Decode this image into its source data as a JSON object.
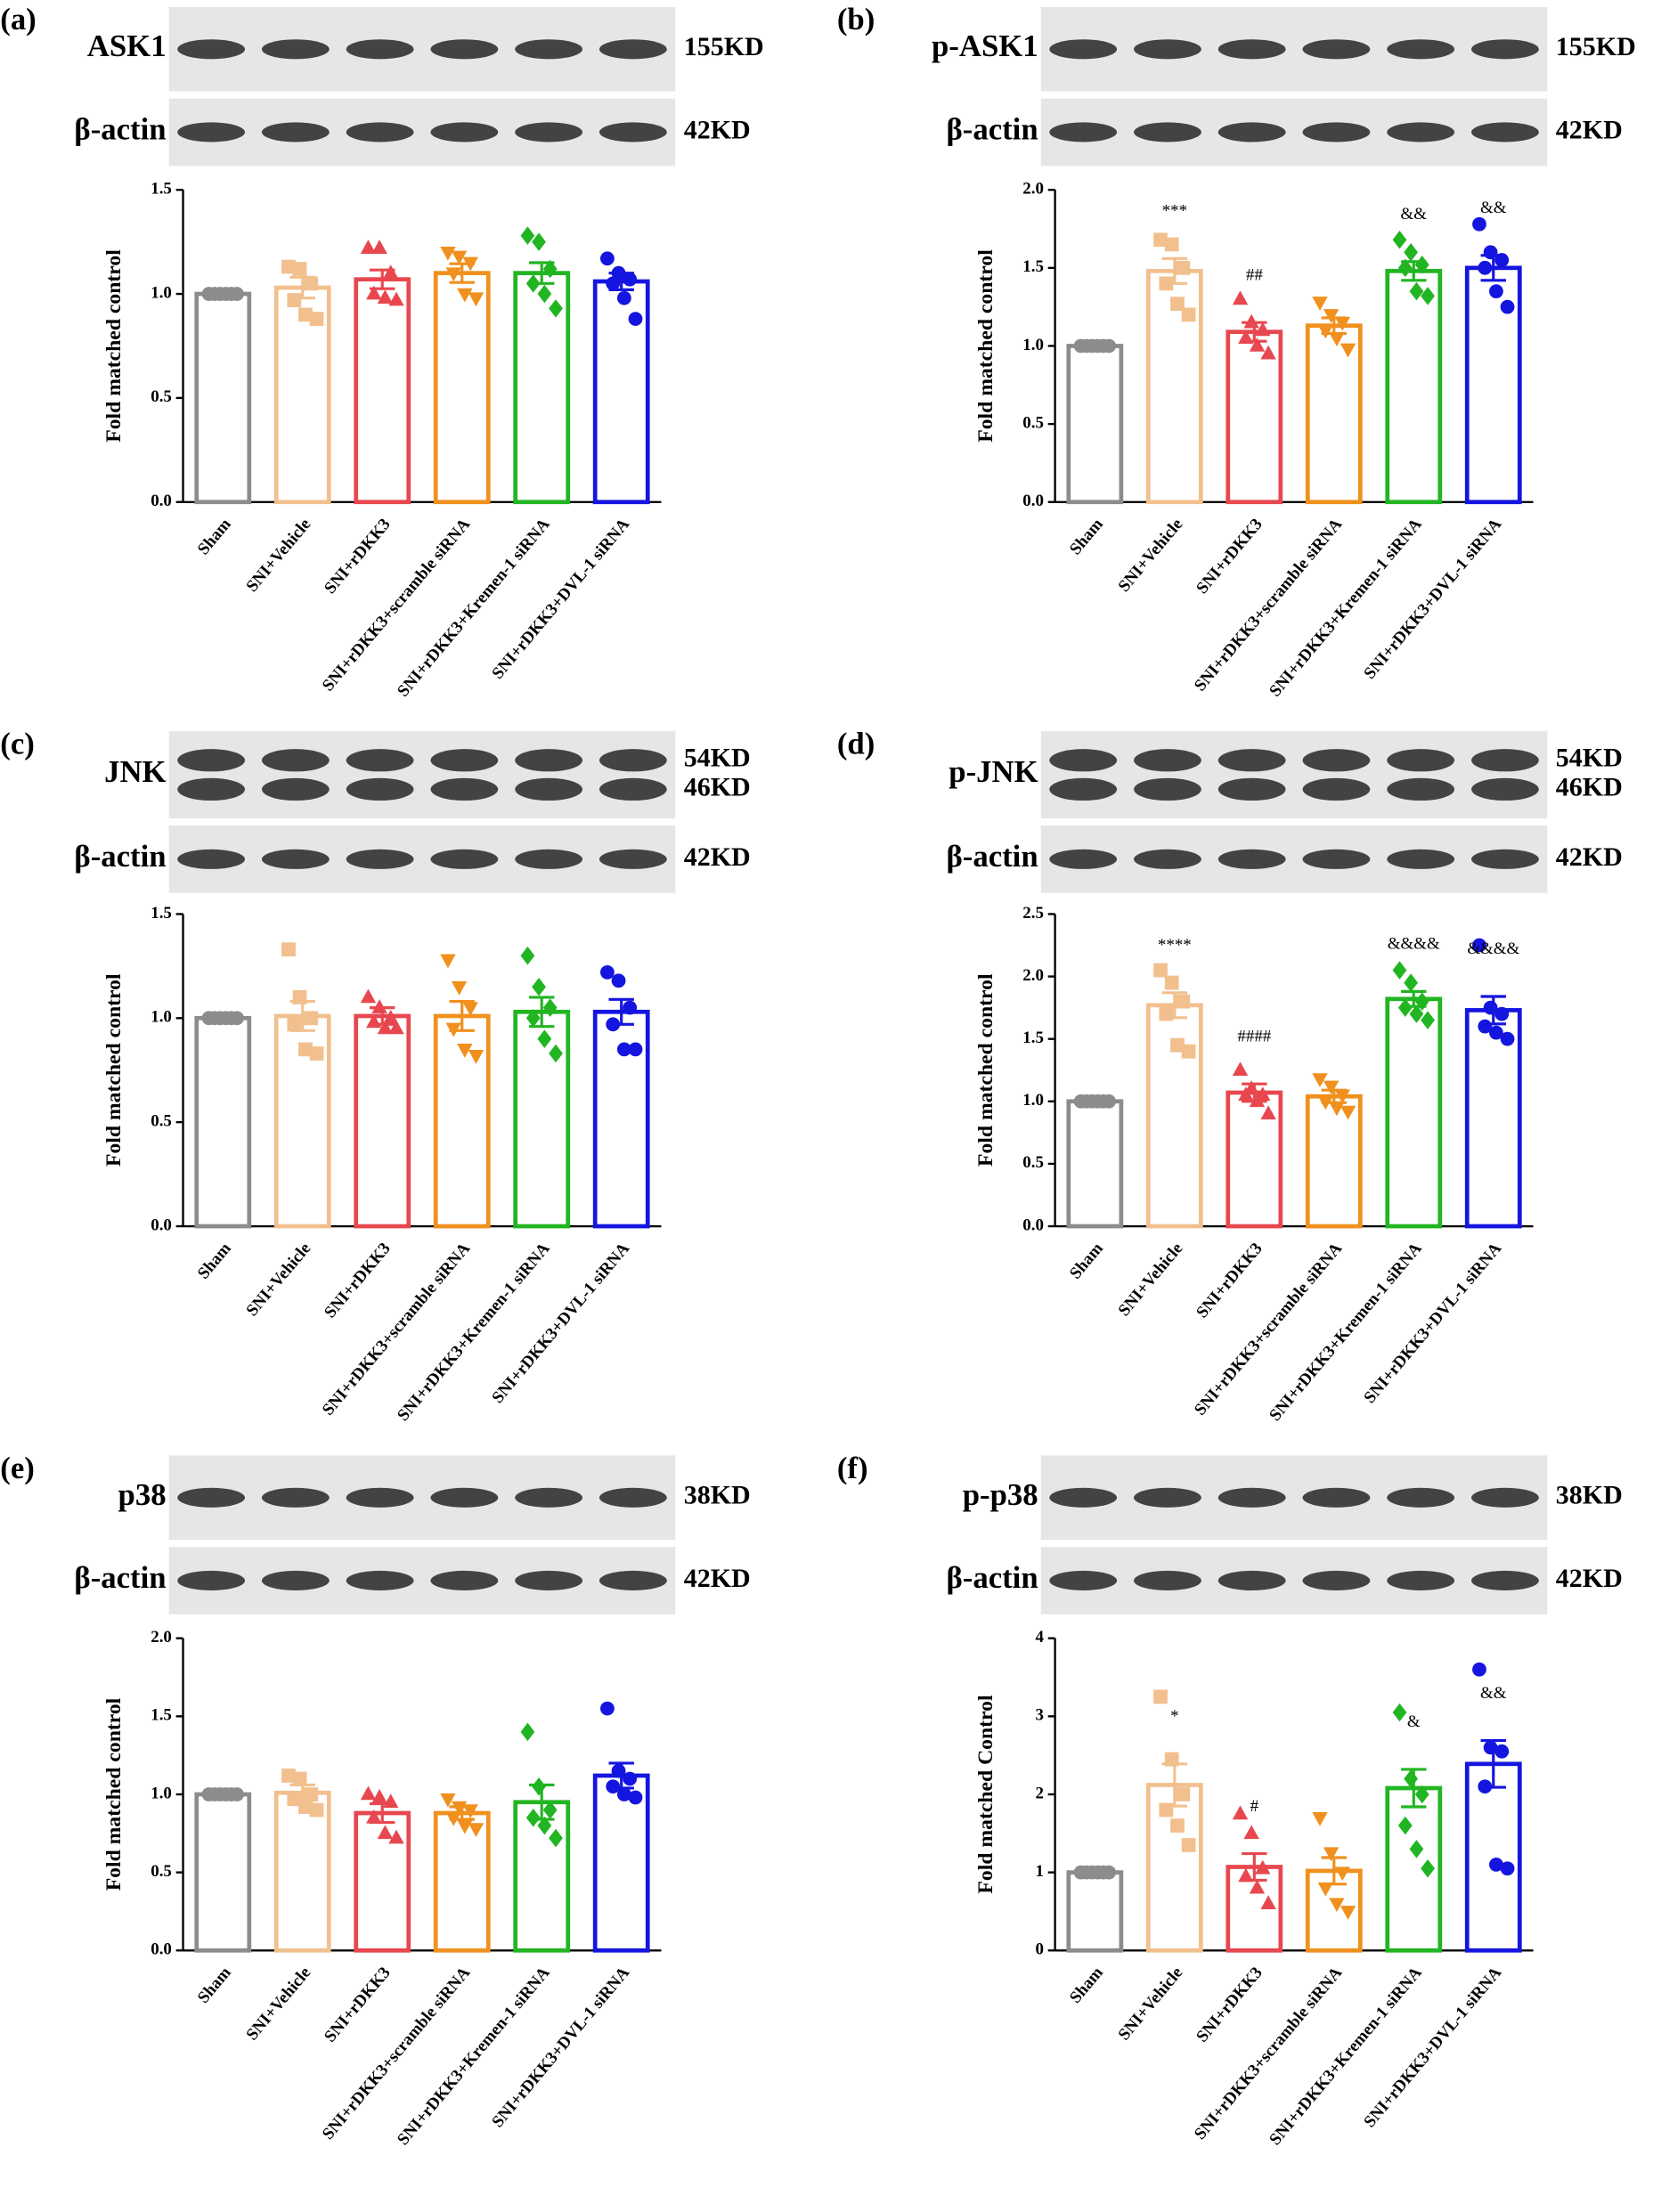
{
  "chart_data": [
    {
      "type": "bar",
      "panel": "(a)",
      "blots": [
        {
          "label": "ASK1",
          "sizes": [
            "155KD"
          ]
        },
        {
          "label": "β-actin",
          "sizes": [
            "42KD"
          ]
        }
      ],
      "y_label": "Fold matched control",
      "categories": [
        "Sham",
        "SNI+Vehicle",
        "SNI+rDKK3",
        "SNI+rDKK3+scramble siRNA",
        "SNI+rDKK3+Kremen-1 siRNA",
        "SNI+rDKK3+DVL-1 siRNA"
      ],
      "colors": [
        "#8c8c8c",
        "#f2c08e",
        "#e8474f",
        "#f0901e",
        "#22b522",
        "#1515e0"
      ],
      "markers": [
        "circle",
        "square",
        "triangle",
        "triangle-down",
        "diamond",
        "circle"
      ],
      "values": [
        1.0,
        1.03,
        1.07,
        1.1,
        1.1,
        1.06
      ],
      "errors": [
        0,
        0.05,
        0.045,
        0.045,
        0.05,
        0.04
      ],
      "points": [
        [
          1,
          1,
          1,
          1,
          1,
          1
        ],
        [
          1.13,
          1.12,
          1.05,
          0.97,
          0.9,
          0.88
        ],
        [
          1.22,
          1.22,
          1.1,
          1.0,
          0.98,
          0.97
        ],
        [
          1.2,
          1.18,
          1.15,
          1.1,
          1.0,
          0.98
        ],
        [
          1.28,
          1.25,
          1.12,
          1.05,
          1.0,
          0.93
        ],
        [
          1.17,
          1.1,
          1.07,
          1.05,
          0.98,
          0.88
        ]
      ],
      "annotations": [
        null,
        null,
        null,
        null,
        null,
        null
      ],
      "ylim": [
        0,
        1.5
      ],
      "yticks": [
        {
          "value": 0,
          "label": "0.0"
        },
        {
          "value": 0.5,
          "label": "0.5"
        },
        {
          "value": 1,
          "label": "1.0"
        },
        {
          "value": 1.5,
          "label": "1.5"
        }
      ]
    },
    {
      "type": "bar",
      "panel": "(b)",
      "blots": [
        {
          "label": "p-ASK1",
          "sizes": [
            "155KD"
          ]
        },
        {
          "label": "β-actin",
          "sizes": [
            "42KD"
          ]
        }
      ],
      "y_label": "Fold matched control",
      "categories": [
        "Sham",
        "SNI+Vehicle",
        "SNI+rDKK3",
        "SNI+rDKK3+scramble siRNA",
        "SNI+rDKK3+Kremen-1 siRNA",
        "SNI+rDKK3+DVL-1 siRNA"
      ],
      "colors": [
        "#8c8c8c",
        "#f2c08e",
        "#e8474f",
        "#f0901e",
        "#22b522",
        "#1515e0"
      ],
      "markers": [
        "circle",
        "square",
        "triangle",
        "triangle-down",
        "diamond",
        "circle"
      ],
      "values": [
        1.0,
        1.48,
        1.09,
        1.13,
        1.48,
        1.5
      ],
      "errors": [
        0,
        0.08,
        0.06,
        0.05,
        0.06,
        0.08
      ],
      "points": [
        [
          1,
          1,
          1,
          1,
          1,
          1
        ],
        [
          1.68,
          1.65,
          1.5,
          1.4,
          1.27,
          1.2
        ],
        [
          1.3,
          1.15,
          1.1,
          1.05,
          1.0,
          0.95
        ],
        [
          1.28,
          1.2,
          1.15,
          1.1,
          1.05,
          0.98
        ],
        [
          1.68,
          1.6,
          1.52,
          1.5,
          1.35,
          1.32
        ],
        [
          1.78,
          1.6,
          1.55,
          1.5,
          1.35,
          1.25
        ]
      ],
      "annotations": [
        null,
        "***",
        "##",
        null,
        "&&",
        "&&"
      ],
      "ylim": [
        0,
        2
      ],
      "yticks": [
        {
          "value": 0,
          "label": "0.0"
        },
        {
          "value": 0.5,
          "label": "0.5"
        },
        {
          "value": 1,
          "label": "1.0"
        },
        {
          "value": 1.5,
          "label": "1.5"
        },
        {
          "value": 2,
          "label": "2.0"
        }
      ]
    },
    {
      "type": "bar",
      "panel": "(c)",
      "blots": [
        {
          "label": "JNK",
          "sizes": [
            "54KD",
            "46KD"
          ]
        },
        {
          "label": "β-actin",
          "sizes": [
            "42KD"
          ]
        }
      ],
      "y_label": "Fold matched control",
      "categories": [
        "Sham",
        "SNI+Vehicle",
        "SNI+rDKK3",
        "SNI+rDKK3+scramble siRNA",
        "SNI+rDKK3+Kremen-1 siRNA",
        "SNI+rDKK3+DVL-1 siRNA"
      ],
      "colors": [
        "#8c8c8c",
        "#f2c08e",
        "#e8474f",
        "#f0901e",
        "#22b522",
        "#1515e0"
      ],
      "markers": [
        "circle",
        "square",
        "triangle",
        "triangle-down",
        "diamond",
        "circle"
      ],
      "values": [
        1.0,
        1.01,
        1.01,
        1.01,
        1.03,
        1.03
      ],
      "errors": [
        0,
        0.07,
        0.04,
        0.07,
        0.07,
        0.06
      ],
      "points": [
        [
          1,
          1,
          1,
          1,
          1,
          1
        ],
        [
          1.33,
          1.1,
          1.0,
          0.97,
          0.85,
          0.83
        ],
        [
          1.1,
          1.05,
          1.0,
          0.98,
          0.95,
          0.95
        ],
        [
          1.28,
          1.15,
          1.05,
          0.95,
          0.85,
          0.82
        ],
        [
          1.3,
          1.15,
          1.05,
          1.0,
          0.9,
          0.83
        ],
        [
          1.22,
          1.18,
          1.05,
          0.97,
          0.85,
          0.85
        ]
      ],
      "annotations": [
        null,
        null,
        null,
        null,
        null,
        null
      ],
      "ylim": [
        0,
        1.5
      ],
      "yticks": [
        {
          "value": 0,
          "label": "0.0"
        },
        {
          "value": 0.5,
          "label": "0.5"
        },
        {
          "value": 1,
          "label": "1.0"
        },
        {
          "value": 1.5,
          "label": "1.5"
        }
      ]
    },
    {
      "type": "bar",
      "panel": "(d)",
      "blots": [
        {
          "label": "p-JNK",
          "sizes": [
            "54KD",
            "46KD"
          ]
        },
        {
          "label": "β-actin",
          "sizes": [
            "42KD"
          ]
        }
      ],
      "y_label": "Fold matched control",
      "categories": [
        "Sham",
        "SNI+Vehicle",
        "SNI+rDKK3",
        "SNI+rDKK3+scramble siRNA",
        "SNI+rDKK3+Kremen-1 siRNA",
        "SNI+rDKK3+DVL-1 siRNA"
      ],
      "colors": [
        "#8c8c8c",
        "#f2c08e",
        "#e8474f",
        "#f0901e",
        "#22b522",
        "#1515e0"
      ],
      "markers": [
        "circle",
        "square",
        "triangle",
        "triangle-down",
        "diamond",
        "circle"
      ],
      "values": [
        1.0,
        1.77,
        1.07,
        1.04,
        1.82,
        1.73
      ],
      "errors": [
        0,
        0.1,
        0.07,
        0.05,
        0.06,
        0.11
      ],
      "points": [
        [
          1,
          1,
          1,
          1,
          1,
          1
        ],
        [
          2.05,
          1.95,
          1.8,
          1.7,
          1.45,
          1.4
        ],
        [
          1.25,
          1.1,
          1.05,
          1.05,
          1.0,
          0.9
        ],
        [
          1.18,
          1.12,
          1.05,
          1.0,
          0.95,
          0.92
        ],
        [
          2.05,
          1.95,
          1.8,
          1.75,
          1.7,
          1.65
        ],
        [
          2.25,
          1.75,
          1.7,
          1.6,
          1.55,
          1.5
        ]
      ],
      "annotations": [
        null,
        "****",
        "####",
        null,
        "&&&&",
        "&&&&"
      ],
      "ylim": [
        0,
        2.5
      ],
      "yticks": [
        {
          "value": 0,
          "label": "0.0"
        },
        {
          "value": 0.5,
          "label": "0.5"
        },
        {
          "value": 1,
          "label": "1.0"
        },
        {
          "value": 1.5,
          "label": "1.5"
        },
        {
          "value": 2,
          "label": "2.0"
        },
        {
          "value": 2.5,
          "label": "2.5"
        }
      ]
    },
    {
      "type": "bar",
      "panel": "(e)",
      "blots": [
        {
          "label": "p38",
          "sizes": [
            "38KD"
          ]
        },
        {
          "label": "β-actin",
          "sizes": [
            "42KD"
          ]
        }
      ],
      "y_label": "Fold matched control",
      "categories": [
        "Sham",
        "SNI+Vehicle",
        "SNI+rDKK3",
        "SNI+rDKK3+scramble siRNA",
        "SNI+rDKK3+Kremen-1 siRNA",
        "SNI+rDKK3+DVL-1 siRNA"
      ],
      "colors": [
        "#8c8c8c",
        "#f2c08e",
        "#e8474f",
        "#f0901e",
        "#22b522",
        "#1515e0"
      ],
      "markers": [
        "circle",
        "square",
        "triangle",
        "triangle-down",
        "diamond",
        "circle"
      ],
      "values": [
        1.0,
        1.01,
        0.88,
        0.88,
        0.95,
        1.12
      ],
      "errors": [
        0,
        0.05,
        0.06,
        0.04,
        0.11,
        0.08
      ],
      "points": [
        [
          1,
          1,
          1,
          1,
          1,
          1
        ],
        [
          1.12,
          1.1,
          1.0,
          0.97,
          0.92,
          0.9
        ],
        [
          1.0,
          0.98,
          0.95,
          0.85,
          0.75,
          0.72
        ],
        [
          0.97,
          0.92,
          0.9,
          0.85,
          0.8,
          0.78
        ],
        [
          1.4,
          1.05,
          0.9,
          0.85,
          0.8,
          0.72
        ],
        [
          1.55,
          1.15,
          1.1,
          1.05,
          1.0,
          0.98
        ]
      ],
      "annotations": [
        null,
        null,
        null,
        null,
        null,
        null
      ],
      "ylim": [
        0,
        2
      ],
      "yticks": [
        {
          "value": 0,
          "label": "0.0"
        },
        {
          "value": 0.5,
          "label": "0.5"
        },
        {
          "value": 1,
          "label": "1.0"
        },
        {
          "value": 1.5,
          "label": "1.5"
        },
        {
          "value": 2,
          "label": "2.0"
        }
      ]
    },
    {
      "type": "bar",
      "panel": "(f)",
      "blots": [
        {
          "label": "p-p38",
          "sizes": [
            "38KD"
          ]
        },
        {
          "label": "β-actin",
          "sizes": [
            "42KD"
          ]
        }
      ],
      "y_label": "Fold matched Control",
      "categories": [
        "Sham",
        "SNI+Vehicle",
        "SNI+rDKK3",
        "SNI+rDKK3+scramble siRNA",
        "SNI+rDKK3+Kremen-1 siRNA",
        "SNI+rDKK3+DVL-1 siRNA"
      ],
      "colors": [
        "#8c8c8c",
        "#f2c08e",
        "#e8474f",
        "#f0901e",
        "#22b522",
        "#1515e0"
      ],
      "markers": [
        "circle",
        "square",
        "triangle",
        "triangle-down",
        "diamond",
        "circle"
      ],
      "values": [
        1.0,
        2.12,
        1.07,
        1.02,
        2.08,
        2.39
      ],
      "errors": [
        0,
        0.27,
        0.17,
        0.17,
        0.24,
        0.3
      ],
      "points": [
        [
          1,
          1,
          1,
          1,
          1,
          1
        ],
        [
          3.25,
          2.45,
          2.0,
          1.8,
          1.6,
          1.35
        ],
        [
          1.75,
          1.5,
          1.05,
          0.95,
          0.8,
          0.6
        ],
        [
          1.7,
          1.25,
          1.0,
          0.8,
          0.6,
          0.5
        ],
        [
          3.05,
          2.2,
          2.0,
          1.6,
          1.3,
          1.05
        ],
        [
          3.6,
          2.6,
          2.55,
          2.1,
          1.1,
          1.05
        ]
      ],
      "annotations": [
        null,
        "*",
        "#",
        null,
        "&",
        "&&"
      ],
      "ylim": [
        0,
        4
      ],
      "yticks": [
        0,
        1,
        2,
        3,
        4
      ]
    }
  ]
}
